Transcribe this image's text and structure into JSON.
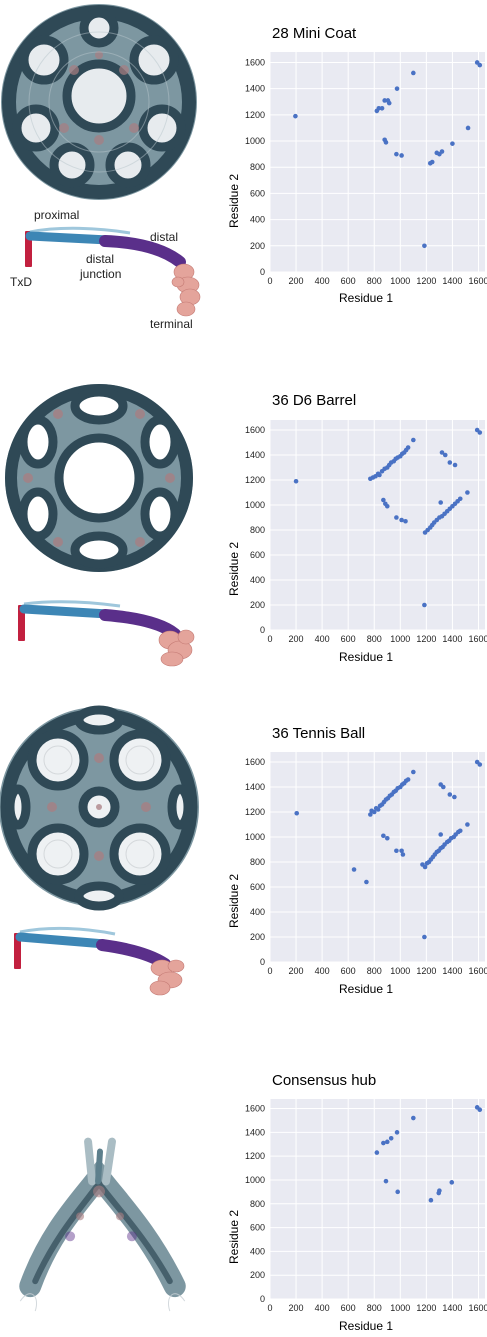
{
  "colors": {
    "plot_bg": "#e9eaf2",
    "grid": "#ffffff",
    "point": "#4a72c4",
    "cage_dark": "#2f4956",
    "cage_mid": "#5d7f8c",
    "cage_light": "#aabdc4",
    "cage_pink": "#a97e82",
    "leg_red": "#c2203f",
    "leg_blue": "#3d86b5",
    "leg_purple": "#5a2f8a",
    "leg_pink": "#e4a49b"
  },
  "annotations": {
    "proximal": "proximal",
    "distal": "distal",
    "txd": "TxD",
    "distal_junction_1": "distal",
    "distal_junction_2": "junction",
    "terminal": "terminal"
  },
  "chart_data": [
    {
      "type": "scatter",
      "title": "28 Mini Coat",
      "xlabel": "Residue 1",
      "ylabel": "Residue 2",
      "xlim": [
        0,
        1650
      ],
      "ylim": [
        0,
        1680
      ],
      "xticks": [
        0,
        200,
        400,
        600,
        800,
        1000,
        1200,
        1400,
        1600
      ],
      "yticks": [
        0,
        200,
        400,
        600,
        800,
        1000,
        1200,
        1400,
        1600
      ],
      "grid": true,
      "points": [
        [
          195,
          1190
        ],
        [
          820,
          1230
        ],
        [
          835,
          1250
        ],
        [
          860,
          1250
        ],
        [
          880,
          1310
        ],
        [
          905,
          1310
        ],
        [
          915,
          1290
        ],
        [
          975,
          1400
        ],
        [
          1100,
          1520
        ],
        [
          880,
          1010
        ],
        [
          890,
          990
        ],
        [
          970,
          900
        ],
        [
          1010,
          890
        ],
        [
          1185,
          200
        ],
        [
          1230,
          830
        ],
        [
          1245,
          840
        ],
        [
          1280,
          910
        ],
        [
          1300,
          900
        ],
        [
          1320,
          920
        ],
        [
          1400,
          980
        ],
        [
          1520,
          1100
        ],
        [
          1590,
          1600
        ],
        [
          1610,
          1580
        ]
      ]
    },
    {
      "type": "scatter",
      "title": "36 D6 Barrel",
      "xlabel": "Residue 1",
      "ylabel": "Residue 2",
      "xlim": [
        0,
        1650
      ],
      "ylim": [
        0,
        1680
      ],
      "xticks": [
        0,
        200,
        400,
        600,
        800,
        1000,
        1200,
        1400,
        1600
      ],
      "yticks": [
        0,
        200,
        400,
        600,
        800,
        1000,
        1200,
        1400,
        1600
      ],
      "grid": true,
      "points": [
        [
          200,
          1190
        ],
        [
          770,
          1210
        ],
        [
          790,
          1220
        ],
        [
          810,
          1230
        ],
        [
          830,
          1250
        ],
        [
          840,
          1240
        ],
        [
          860,
          1270
        ],
        [
          880,
          1290
        ],
        [
          900,
          1300
        ],
        [
          915,
          1320
        ],
        [
          930,
          1340
        ],
        [
          950,
          1350
        ],
        [
          965,
          1370
        ],
        [
          980,
          1380
        ],
        [
          1000,
          1390
        ],
        [
          1015,
          1410
        ],
        [
          1030,
          1420
        ],
        [
          1045,
          1440
        ],
        [
          1060,
          1460
        ],
        [
          1100,
          1520
        ],
        [
          870,
          1040
        ],
        [
          885,
          1010
        ],
        [
          900,
          990
        ],
        [
          970,
          900
        ],
        [
          1010,
          880
        ],
        [
          1040,
          870
        ],
        [
          1185,
          200
        ],
        [
          1190,
          780
        ],
        [
          1210,
          800
        ],
        [
          1230,
          820
        ],
        [
          1245,
          840
        ],
        [
          1260,
          860
        ],
        [
          1280,
          880
        ],
        [
          1300,
          900
        ],
        [
          1320,
          910
        ],
        [
          1340,
          930
        ],
        [
          1360,
          950
        ],
        [
          1380,
          970
        ],
        [
          1400,
          990
        ],
        [
          1420,
          1010
        ],
        [
          1440,
          1030
        ],
        [
          1460,
          1050
        ],
        [
          1310,
          1020
        ],
        [
          1320,
          1420
        ],
        [
          1345,
          1400
        ],
        [
          1380,
          1340
        ],
        [
          1420,
          1320
        ],
        [
          1515,
          1100
        ],
        [
          1590,
          1600
        ],
        [
          1610,
          1580
        ]
      ]
    },
    {
      "type": "scatter",
      "title": "36 Tennis Ball",
      "xlabel": "Residue 1",
      "ylabel": "Residue 2",
      "xlim": [
        0,
        1650
      ],
      "ylim": [
        0,
        1680
      ],
      "xticks": [
        0,
        200,
        400,
        600,
        800,
        1000,
        1200,
        1400,
        1600
      ],
      "yticks": [
        0,
        200,
        400,
        600,
        800,
        1000,
        1200,
        1400,
        1600
      ],
      "grid": true,
      "points": [
        [
          205,
          1190
        ],
        [
          645,
          740
        ],
        [
          740,
          640
        ],
        [
          770,
          1180
        ],
        [
          780,
          1210
        ],
        [
          800,
          1200
        ],
        [
          815,
          1230
        ],
        [
          830,
          1220
        ],
        [
          845,
          1250
        ],
        [
          860,
          1260
        ],
        [
          875,
          1280
        ],
        [
          890,
          1300
        ],
        [
          905,
          1310
        ],
        [
          920,
          1330
        ],
        [
          935,
          1340
        ],
        [
          950,
          1360
        ],
        [
          965,
          1370
        ],
        [
          980,
          1390
        ],
        [
          1000,
          1400
        ],
        [
          1015,
          1420
        ],
        [
          1030,
          1430
        ],
        [
          1045,
          1450
        ],
        [
          1060,
          1460
        ],
        [
          1100,
          1520
        ],
        [
          870,
          1010
        ],
        [
          900,
          990
        ],
        [
          970,
          890
        ],
        [
          1010,
          890
        ],
        [
          1020,
          860
        ],
        [
          1170,
          780
        ],
        [
          1185,
          200
        ],
        [
          1190,
          760
        ],
        [
          1205,
          790
        ],
        [
          1220,
          800
        ],
        [
          1235,
          820
        ],
        [
          1250,
          840
        ],
        [
          1265,
          860
        ],
        [
          1280,
          880
        ],
        [
          1295,
          890
        ],
        [
          1310,
          910
        ],
        [
          1325,
          920
        ],
        [
          1340,
          940
        ],
        [
          1360,
          960
        ],
        [
          1375,
          970
        ],
        [
          1390,
          990
        ],
        [
          1410,
          1000
        ],
        [
          1425,
          1020
        ],
        [
          1445,
          1040
        ],
        [
          1460,
          1050
        ],
        [
          1310,
          1020
        ],
        [
          1310,
          1420
        ],
        [
          1330,
          1400
        ],
        [
          1380,
          1340
        ],
        [
          1415,
          1320
        ],
        [
          1515,
          1100
        ],
        [
          1590,
          1600
        ],
        [
          1610,
          1580
        ]
      ]
    },
    {
      "type": "scatter",
      "title": "Consensus hub",
      "xlabel": "Residue 1",
      "ylabel": "Residue 2",
      "xlim": [
        0,
        1650
      ],
      "ylim": [
        0,
        1680
      ],
      "xticks": [
        0,
        200,
        400,
        600,
        800,
        1000,
        1200,
        1400,
        1600
      ],
      "yticks": [
        0,
        200,
        400,
        600,
        800,
        1000,
        1200,
        1400,
        1600
      ],
      "grid": true,
      "points": [
        [
          820,
          1230
        ],
        [
          870,
          1310
        ],
        [
          900,
          1320
        ],
        [
          930,
          1350
        ],
        [
          975,
          1400
        ],
        [
          1100,
          1520
        ],
        [
          890,
          990
        ],
        [
          980,
          900
        ],
        [
          1235,
          830
        ],
        [
          1295,
          890
        ],
        [
          1300,
          910
        ],
        [
          1395,
          980
        ],
        [
          1590,
          1610
        ],
        [
          1610,
          1590
        ]
      ]
    }
  ]
}
